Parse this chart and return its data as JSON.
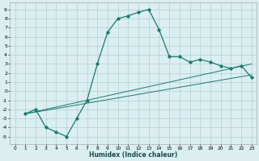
{
  "xlabel": "Humidex (Indice chaleur)",
  "bg_color": "#dbeef0",
  "grid_color": "#b0d0d4",
  "line_color": "#1a7a6e",
  "xlim": [
    -0.5,
    23.5
  ],
  "ylim": [
    -5.8,
    9.8
  ],
  "yticks": [
    -5,
    -4,
    -3,
    -2,
    -1,
    0,
    1,
    2,
    3,
    4,
    5,
    6,
    7,
    8,
    9
  ],
  "xticks": [
    0,
    1,
    2,
    3,
    4,
    5,
    6,
    7,
    8,
    9,
    10,
    11,
    12,
    13,
    14,
    15,
    16,
    17,
    18,
    19,
    20,
    21,
    22,
    23
  ],
  "line1_x": [
    1,
    2,
    3,
    4,
    5,
    6,
    7,
    8,
    9,
    10,
    11,
    12,
    13,
    14,
    15,
    16,
    17,
    18,
    19,
    20,
    21,
    22,
    23
  ],
  "line1_y": [
    -2.5,
    -2.0,
    -4.0,
    -4.5,
    -5.0,
    -3.0,
    -1.0,
    3.0,
    6.5,
    8.0,
    8.3,
    8.7,
    9.0,
    6.8,
    3.8,
    3.8,
    3.2,
    3.5,
    3.2,
    2.8,
    2.5,
    2.8,
    1.5
  ],
  "line2_x": [
    1,
    23
  ],
  "line2_y": [
    -2.5,
    3.0
  ],
  "line3_x": [
    1,
    23
  ],
  "line3_y": [
    -2.5,
    1.8
  ]
}
